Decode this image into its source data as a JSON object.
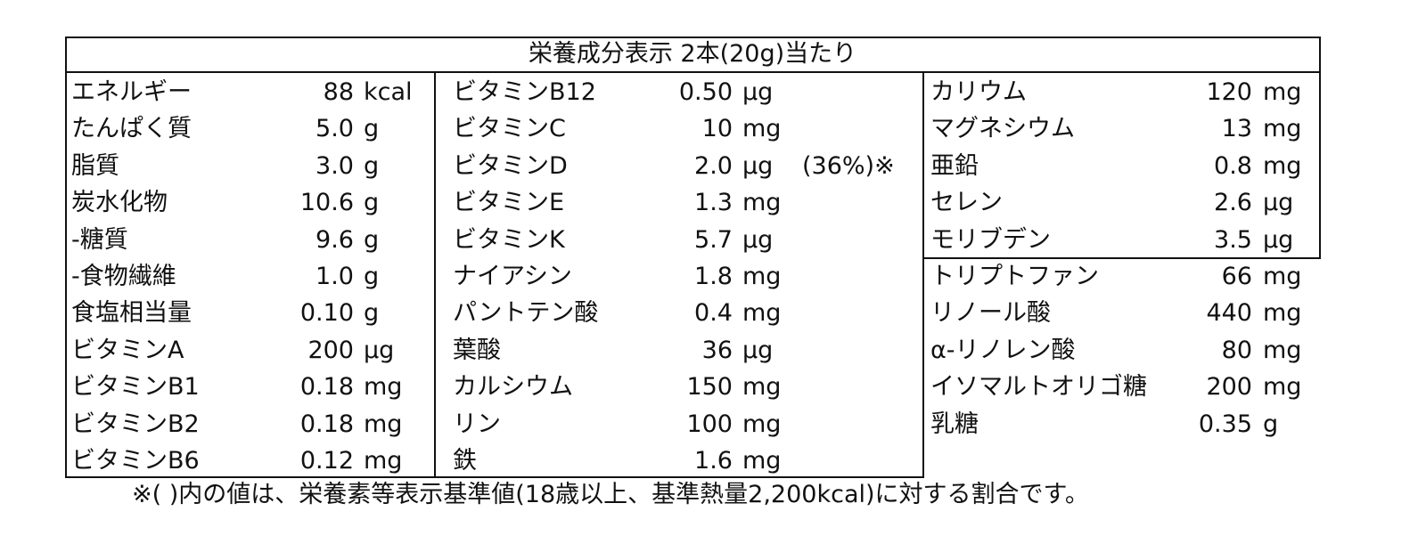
{
  "title": "栄養成分表示 2本(20g)当たり",
  "columns": [
    [
      {
        "name": "エネルギー",
        "value": "88",
        "unit": "kcal"
      },
      {
        "name": "たんぱく質",
        "value": "5.0",
        "unit": "g"
      },
      {
        "name": "脂質",
        "value": "3.0",
        "unit": "g"
      },
      {
        "name": "炭水化物",
        "value": "10.6",
        "unit": "g"
      },
      {
        "name": " -糖質",
        "value": "9.6",
        "unit": "g"
      },
      {
        "name": " -食物繊維",
        "value": "1.0",
        "unit": "g"
      },
      {
        "name": "食塩相当量",
        "value": "0.10",
        "unit": "g"
      },
      {
        "name": "ビタミンA",
        "value": "200",
        "unit": "μg"
      },
      {
        "name": "ビタミンB1",
        "value": "0.18",
        "unit": "mg"
      },
      {
        "name": "ビタミンB2",
        "value": "0.18",
        "unit": "mg"
      },
      {
        "name": "ビタミンB6",
        "value": "0.12",
        "unit": "mg"
      }
    ],
    [
      {
        "name": "ビタミンB12",
        "value": "0.50",
        "unit": "μg"
      },
      {
        "name": "ビタミンC",
        "value": "10",
        "unit": "mg"
      },
      {
        "name": "ビタミンD",
        "value": "2.0",
        "unit": "μg",
        "note": "(36%)※"
      },
      {
        "name": "ビタミンE",
        "value": "1.3",
        "unit": "mg"
      },
      {
        "name": "ビタミンK",
        "value": "5.7",
        "unit": "μg"
      },
      {
        "name": "ナイアシン",
        "value": "1.8",
        "unit": "mg"
      },
      {
        "name": "パントテン酸",
        "value": "0.4",
        "unit": "mg"
      },
      {
        "name": "葉酸",
        "value": "36",
        "unit": "μg"
      },
      {
        "name": "カルシウム",
        "value": "150",
        "unit": "mg"
      },
      {
        "name": "リン",
        "value": "100",
        "unit": "mg"
      },
      {
        "name": "鉄",
        "value": "1.6",
        "unit": "mg"
      }
    ],
    [
      {
        "name": "カリウム",
        "value": "120",
        "unit": "mg"
      },
      {
        "name": "マグネシウム",
        "value": "13",
        "unit": "mg"
      },
      {
        "name": "亜鉛",
        "value": "0.8",
        "unit": "mg"
      },
      {
        "name": "セレン",
        "value": "2.6",
        "unit": "μg"
      },
      {
        "name": "モリブデン",
        "value": "3.5",
        "unit": "μg"
      },
      {
        "name": "トリプトファン",
        "value": "66",
        "unit": "mg"
      },
      {
        "name": "リノール酸",
        "value": "440",
        "unit": "mg"
      },
      {
        "name": "α-リノレン酸",
        "value": "80",
        "unit": "mg"
      },
      {
        "name": "イソマルトオリゴ糖",
        "value": "200",
        "unit": "mg"
      },
      {
        "name": "乳糖",
        "value": "0.35",
        "unit": "g"
      }
    ]
  ],
  "footnote": "※(  )内の値は、栄養素等表示基準値(18歳以上、基準熱量2,200kcal)に対する割合です。"
}
